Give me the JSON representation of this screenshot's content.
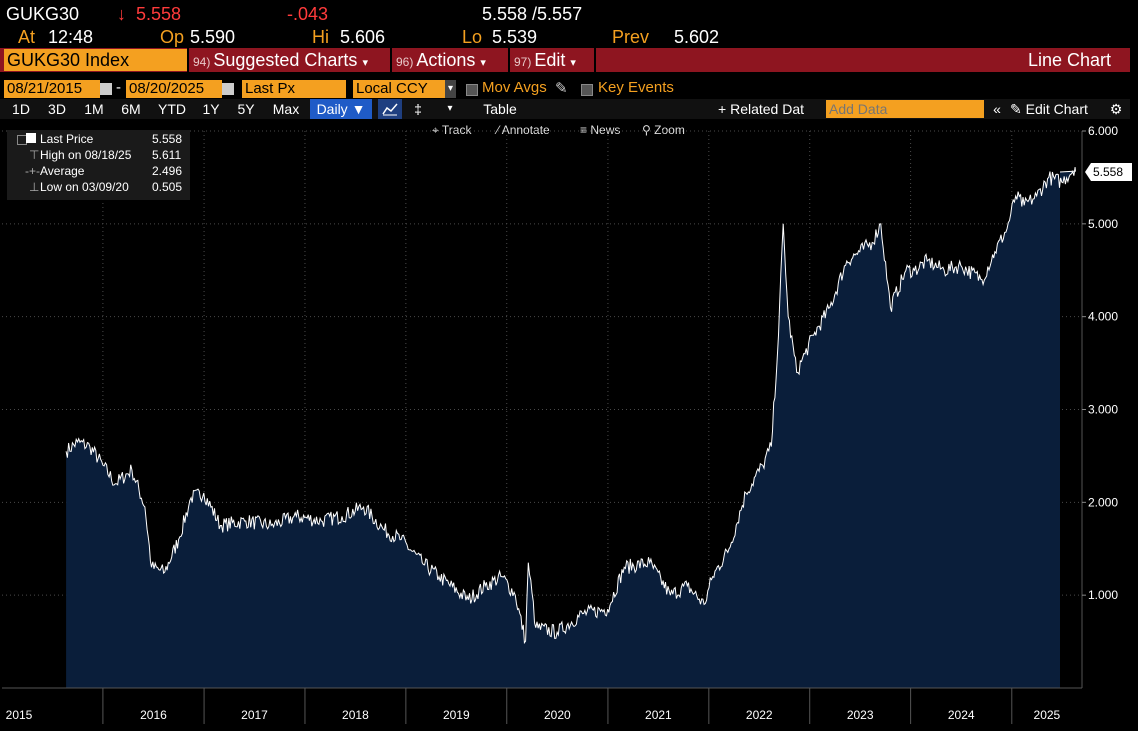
{
  "quote": {
    "ticker": "GUKG30",
    "last": "5.558",
    "change": "-.043",
    "bid_ask": "5.558 /5.557",
    "at_label": "At",
    "at_time": "12:48",
    "open_label": "Op",
    "open": "5.590",
    "high_label": "Hi",
    "high": "5.606",
    "low_label": "Lo",
    "low": "5.539",
    "prev_label": "Prev",
    "prev": "5.602"
  },
  "menubar": {
    "security": "GUKG30 Index",
    "suggested_num": "94)",
    "suggested": "Suggested Charts",
    "actions_num": "96)",
    "actions": "Actions",
    "edit_num": "97)",
    "edit": "Edit",
    "chart_type": "Line Chart"
  },
  "controls": {
    "start_date": "08/21/2015",
    "end_date": "08/20/2025",
    "field": "Last Px",
    "currency": "Local CCY",
    "mov_avgs": "Mov Avgs",
    "key_events": "Key Events"
  },
  "ranges": [
    "1D",
    "3D",
    "1M",
    "6M",
    "YTD",
    "1Y",
    "5Y",
    "Max"
  ],
  "toolbar": {
    "period": "Daily",
    "table": "Table",
    "related": "Related Dat",
    "add_data_placeholder": "Add Data",
    "edit_chart": "Edit Chart",
    "track": "Track",
    "annotate": "Annotate",
    "news": "News",
    "zoom": "Zoom"
  },
  "legend": {
    "last_label": "Last Price",
    "last_value": "5.558",
    "high_label": "High on 08/18/25",
    "high_value": "5.611",
    "avg_label": "Average",
    "avg_value": "2.496",
    "low_label": "Low on 03/09/20",
    "low_value": "0.505"
  },
  "colors": {
    "area_fill": "#0a1e3a",
    "line": "#ffffff",
    "accent": "#f4a020",
    "menubar": "#8e1520",
    "down": "#ff3b3b"
  },
  "chart_data": {
    "type": "area",
    "ylim": [
      0,
      6
    ],
    "y_ticks": [
      "1.000",
      "2.000",
      "3.000",
      "4.000",
      "5.000",
      "6.000"
    ],
    "x_ticks": [
      "2015",
      "2016",
      "2017",
      "2018",
      "2019",
      "2020",
      "2021",
      "2022",
      "2023",
      "2024",
      "2025"
    ],
    "last_label": "5.558",
    "grid": true,
    "series": [
      {
        "x": [
          "2015-08-21",
          "2015-10-01",
          "2015-11-15",
          "2016-01-01",
          "2016-02-15",
          "2016-04-15",
          "2016-06-01",
          "2016-06-25",
          "2016-08-12",
          "2016-10-01",
          "2016-11-15",
          "2016-12-31",
          "2017-03-01",
          "2017-06-01",
          "2017-09-01",
          "2017-12-01",
          "2018-03-01",
          "2018-05-15",
          "2018-08-01",
          "2018-10-15",
          "2018-12-15",
          "2019-03-01",
          "2019-05-01",
          "2019-08-15",
          "2019-10-15",
          "2019-12-15",
          "2020-02-01",
          "2020-03-09",
          "2020-03-19",
          "2020-04-15",
          "2020-07-01",
          "2020-10-01",
          "2020-12-31",
          "2021-03-01",
          "2021-06-01",
          "2021-08-15",
          "2021-10-15",
          "2021-12-15",
          "2022-01-15",
          "2022-03-15",
          "2022-05-15",
          "2022-07-15",
          "2022-08-15",
          "2022-09-10",
          "2022-09-27",
          "2022-10-15",
          "2022-11-15",
          "2022-12-15",
          "2023-01-15",
          "2023-03-15",
          "2023-05-15",
          "2023-07-01",
          "2023-08-15",
          "2023-09-15",
          "2023-10-20",
          "2023-12-15",
          "2024-01-15",
          "2024-03-01",
          "2024-05-01",
          "2024-07-01",
          "2024-09-15",
          "2024-11-01",
          "2024-12-15",
          "2025-01-15",
          "2025-02-15",
          "2025-04-01",
          "2025-05-15",
          "2025-07-01",
          "2025-08-18",
          "2025-08-20"
        ],
        "y": [
          2.55,
          2.65,
          2.6,
          2.4,
          2.2,
          2.35,
          1.95,
          1.3,
          1.25,
          1.6,
          2.05,
          2.1,
          1.75,
          1.8,
          1.75,
          1.85,
          1.8,
          1.85,
          1.95,
          1.7,
          1.6,
          1.35,
          1.2,
          0.95,
          1.1,
          1.2,
          1.0,
          0.505,
          1.35,
          0.65,
          0.6,
          0.8,
          0.85,
          1.3,
          1.35,
          1.0,
          1.1,
          0.9,
          1.2,
          1.5,
          2.1,
          2.4,
          2.6,
          3.8,
          5.0,
          4.0,
          3.4,
          3.6,
          3.8,
          4.1,
          4.6,
          4.7,
          4.8,
          5.0,
          4.1,
          4.5,
          4.5,
          4.6,
          4.5,
          4.55,
          4.4,
          4.7,
          4.95,
          5.3,
          5.2,
          5.3,
          5.5,
          5.45,
          5.611,
          5.558
        ]
      }
    ]
  }
}
